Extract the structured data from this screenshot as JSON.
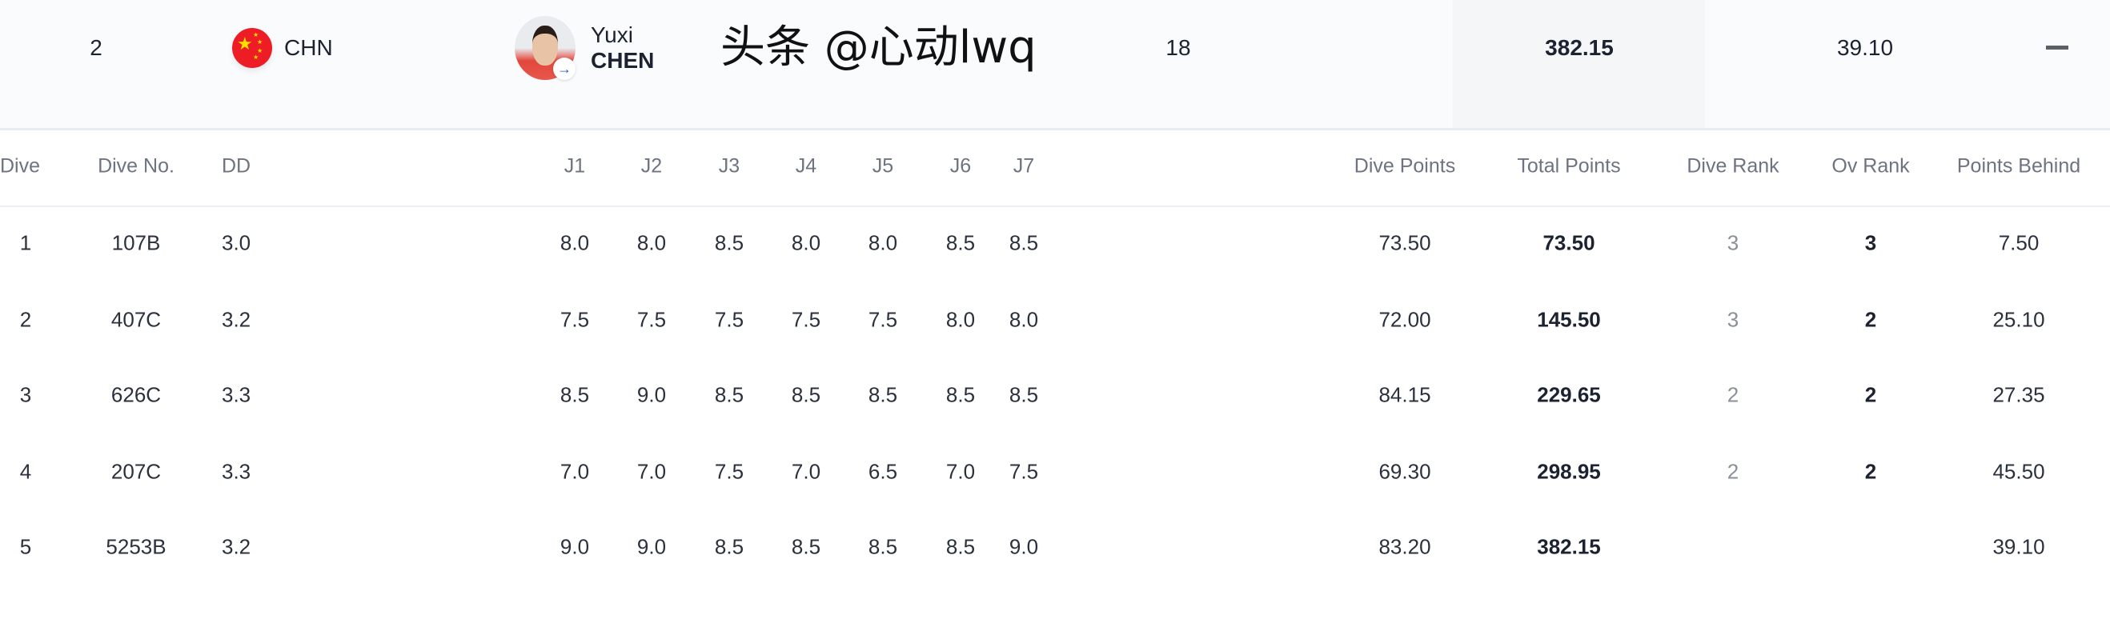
{
  "athlete": {
    "rank": "2",
    "country": "CHN",
    "first_name": "Yuxi",
    "last_name": "CHEN",
    "age": "18",
    "total": "382.15",
    "behind": "39.10",
    "qualified": "—"
  },
  "columns": [
    "Dive",
    "Dive No.",
    "DD",
    "J1",
    "J2",
    "J3",
    "J4",
    "J5",
    "J6",
    "J7",
    "Dive Points",
    "Total Points",
    "Dive Rank",
    "Ov Rank",
    "Points Behind"
  ],
  "rows": [
    {
      "dive": "1",
      "no": "107B",
      "dd": "3.0",
      "j": [
        "8.0",
        "8.0",
        "8.5",
        "8.0",
        "8.0",
        "8.5",
        "8.5"
      ],
      "dive_points": "73.50",
      "total": "73.50",
      "dive_rank": "3",
      "ov_rank": "3",
      "behind": "7.50"
    },
    {
      "dive": "2",
      "no": "407C",
      "dd": "3.2",
      "j": [
        "7.5",
        "7.5",
        "7.5",
        "7.5",
        "7.5",
        "8.0",
        "8.0"
      ],
      "dive_points": "72.00",
      "total": "145.50",
      "dive_rank": "3",
      "ov_rank": "2",
      "behind": "25.10"
    },
    {
      "dive": "3",
      "no": "626C",
      "dd": "3.3",
      "j": [
        "8.5",
        "9.0",
        "8.5",
        "8.5",
        "8.5",
        "8.5",
        "8.5"
      ],
      "dive_points": "84.15",
      "total": "229.65",
      "dive_rank": "2",
      "ov_rank": "2",
      "behind": "27.35"
    },
    {
      "dive": "4",
      "no": "207C",
      "dd": "3.3",
      "j": [
        "7.0",
        "7.0",
        "7.5",
        "7.0",
        "6.5",
        "7.0",
        "7.5"
      ],
      "dive_points": "69.30",
      "total": "298.95",
      "dive_rank": "2",
      "ov_rank": "2",
      "behind": "45.50"
    },
    {
      "dive": "5",
      "no": "5253B",
      "dd": "3.2",
      "j": [
        "9.0",
        "9.0",
        "8.5",
        "8.5",
        "8.5",
        "8.5",
        "9.0"
      ],
      "dive_points": "83.20",
      "total": "382.15",
      "behind": "39.10"
    }
  ],
  "watermark": "头条 @心动lwq",
  "colors": {
    "flag_red": "#ee1c25",
    "flag_star": "#ffde00",
    "link_blue": "#1f5fbf",
    "header_text": "#6d7380"
  }
}
